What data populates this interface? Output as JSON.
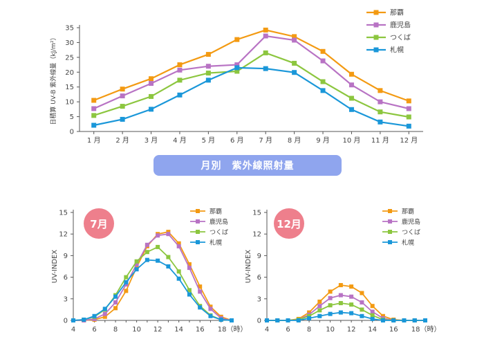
{
  "banner": {
    "title": "月別　紫外線照射量"
  },
  "chart_data": [
    {
      "id": "monthly",
      "type": "line",
      "title": "",
      "xlabel": "",
      "ylabel": "日積算 UV-B 紫外線量（kJ/m²）",
      "categories": [
        "1 月",
        "2 月",
        "3 月",
        "4 月",
        "5 月",
        "6 月",
        "7 月",
        "8 月",
        "9 月",
        "10 月",
        "11 月",
        "12 月"
      ],
      "ylim": [
        0,
        35
      ],
      "yticks": [
        0,
        5,
        10,
        15,
        20,
        25,
        30,
        35
      ],
      "grid": false,
      "legend": "top-right",
      "series": [
        {
          "name": "那覇",
          "color": "#f39a12",
          "values": [
            10.5,
            14.3,
            17.8,
            22.5,
            26.0,
            31.0,
            34.2,
            32.0,
            27.0,
            19.3,
            13.8,
            10.3
          ]
        },
        {
          "name": "鹿児島",
          "color": "#b873c4",
          "values": [
            7.7,
            12.0,
            16.2,
            20.7,
            22.0,
            22.5,
            32.2,
            30.8,
            23.8,
            15.7,
            10.0,
            7.7
          ]
        },
        {
          "name": "つくば",
          "color": "#8cc63f",
          "values": [
            5.4,
            8.5,
            11.8,
            17.3,
            19.7,
            20.3,
            26.5,
            23.0,
            16.8,
            11.2,
            6.6,
            4.9
          ]
        },
        {
          "name": "札幌",
          "color": "#1a97d9",
          "values": [
            2.1,
            4.1,
            7.5,
            12.3,
            17.3,
            21.5,
            21.2,
            19.9,
            13.8,
            7.4,
            3.2,
            1.8
          ]
        }
      ]
    },
    {
      "id": "july",
      "type": "line",
      "badge": "7月",
      "ylabel": "UV-INDEX",
      "xlabel": "",
      "x": [
        4,
        5,
        6,
        7,
        8,
        9,
        10,
        11,
        12,
        13,
        14,
        15,
        16,
        17,
        18,
        19
      ],
      "xticks": [
        4,
        6,
        8,
        10,
        12,
        14,
        16,
        18
      ],
      "xtick_labels": [
        "4",
        "6",
        "8",
        "10",
        "12",
        "14",
        "16",
        "18（時）"
      ],
      "ylim": [
        0,
        15
      ],
      "yticks": [
        0,
        3,
        6,
        9,
        12,
        15
      ],
      "xlim": [
        4,
        19
      ],
      "legend": "top-right",
      "series": [
        {
          "name": "那覇",
          "color": "#f39a12",
          "values": [
            0,
            0,
            0.1,
            0.5,
            1.7,
            4.1,
            7.4,
            10.3,
            12.0,
            12.3,
            10.7,
            7.8,
            4.7,
            1.9,
            0.5,
            0
          ]
        },
        {
          "name": "鹿児島",
          "color": "#b873c4",
          "values": [
            0,
            0,
            0.2,
            0.9,
            2.5,
            5.0,
            7.8,
            10.5,
            11.8,
            12.0,
            10.3,
            7.3,
            4.0,
            1.6,
            0.3,
            0
          ]
        },
        {
          "name": "つくば",
          "color": "#8cc63f",
          "values": [
            0,
            0.1,
            0.5,
            1.5,
            3.5,
            6.0,
            8.2,
            9.5,
            10.2,
            8.8,
            6.8,
            4.2,
            2.0,
            0.7,
            0.1,
            0
          ]
        },
        {
          "name": "札幌",
          "color": "#1a97d9",
          "values": [
            0,
            0.1,
            0.6,
            1.6,
            3.3,
            5.3,
            7.1,
            8.4,
            8.3,
            7.5,
            5.8,
            3.6,
            1.8,
            0.6,
            0.1,
            0
          ]
        }
      ]
    },
    {
      "id": "december",
      "type": "line",
      "badge": "12月",
      "ylabel": "UV-INDEX",
      "xlabel": "",
      "x": [
        4,
        5,
        6,
        7,
        8,
        9,
        10,
        11,
        12,
        13,
        14,
        15,
        16,
        17,
        18,
        19
      ],
      "xticks": [
        4,
        6,
        8,
        10,
        12,
        14,
        16,
        18
      ],
      "xtick_labels": [
        "4",
        "6",
        "8",
        "10",
        "12",
        "14",
        "16",
        "18（時）"
      ],
      "ylim": [
        0,
        15
      ],
      "yticks": [
        0,
        3,
        6,
        9,
        12,
        15
      ],
      "xlim": [
        4,
        19
      ],
      "legend": "top-right",
      "series": [
        {
          "name": "那覇",
          "color": "#f39a12",
          "values": [
            0,
            0,
            0,
            0.2,
            1.1,
            2.6,
            4.0,
            4.9,
            4.7,
            3.8,
            2.0,
            0.6,
            0.1,
            0,
            0,
            0
          ]
        },
        {
          "name": "鹿児島",
          "color": "#b873c4",
          "values": [
            0,
            0,
            0,
            0.1,
            0.8,
            2.0,
            3.1,
            3.5,
            3.3,
            2.5,
            1.2,
            0.3,
            0,
            0,
            0,
            0
          ]
        },
        {
          "name": "つくば",
          "color": "#8cc63f",
          "values": [
            0,
            0,
            0,
            0.1,
            0.6,
            1.4,
            2.1,
            2.4,
            2.2,
            1.5,
            0.7,
            0.1,
            0,
            0,
            0,
            0
          ]
        },
        {
          "name": "札幌",
          "color": "#1a97d9",
          "values": [
            0,
            0,
            0,
            0,
            0.3,
            0.6,
            0.9,
            1.1,
            1.0,
            0.6,
            0.2,
            0,
            0,
            0,
            0,
            0
          ]
        }
      ]
    }
  ]
}
